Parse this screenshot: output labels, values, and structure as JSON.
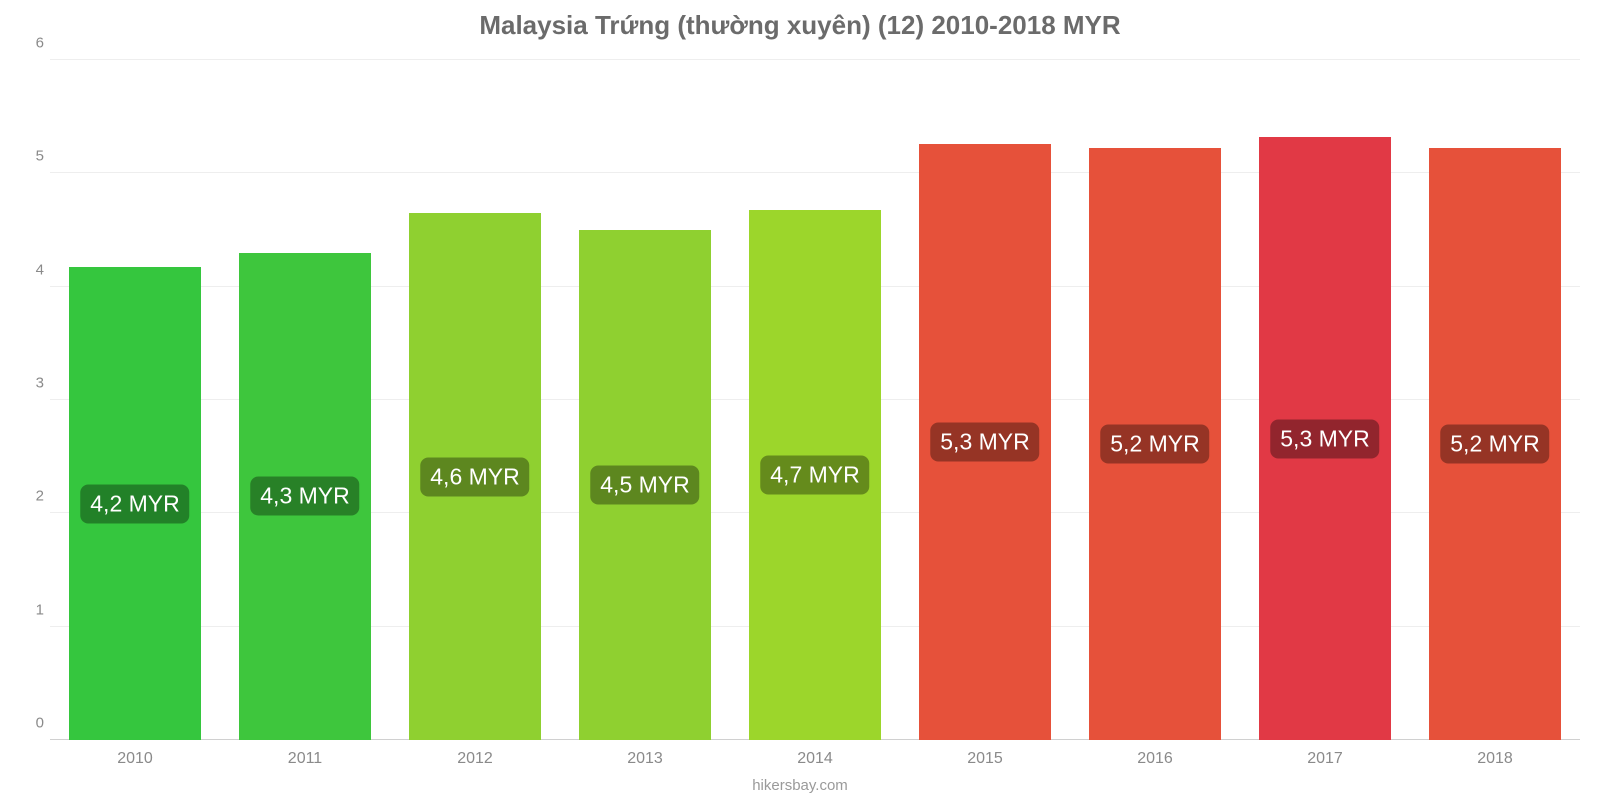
{
  "chart": {
    "type": "bar",
    "title": "Malaysia Trứng (thường xuyên) (12) 2010-2018 MYR",
    "title_fontsize": 26,
    "title_color": "#6b6b6b",
    "source_text": "hikersbay.com",
    "source_fontsize": 15,
    "source_color": "#9a9a9a",
    "background_color": "#ffffff",
    "ylim": [
      0,
      6
    ],
    "ytick_step": 1,
    "ytick_labels": [
      "0",
      "1",
      "2",
      "3",
      "4",
      "5",
      "6"
    ],
    "ytick_fontsize": 15,
    "ytick_color": "#8a8a8a",
    "grid_color": "#eeeeee",
    "baseline_color": "#d0d0d0",
    "bar_width_pct": 78,
    "xtick_fontsize": 16,
    "xtick_color": "#8a8a8a",
    "bar_label_fontsize": 23,
    "bar_label_bg_opacity": 0.35,
    "bar_label_bg_color": "#000000",
    "categories": [
      "2010",
      "2011",
      "2012",
      "2013",
      "2014",
      "2015",
      "2016",
      "2017",
      "2018"
    ],
    "values": [
      4.17,
      4.3,
      4.65,
      4.5,
      4.68,
      5.26,
      5.22,
      5.32,
      5.22
    ],
    "value_labels": [
      "4,2 MYR",
      "4,3 MYR",
      "4,6 MYR",
      "4,5 MYR",
      "4,7 MYR",
      "5,3 MYR",
      "5,2 MYR",
      "5,3 MYR",
      "5,2 MYR"
    ],
    "bar_colors": [
      "#35c63e",
      "#3ec63d",
      "#8fd030",
      "#8fd030",
      "#9cd62b",
      "#e6513a",
      "#e6513a",
      "#e13945",
      "#e6513a"
    ]
  }
}
